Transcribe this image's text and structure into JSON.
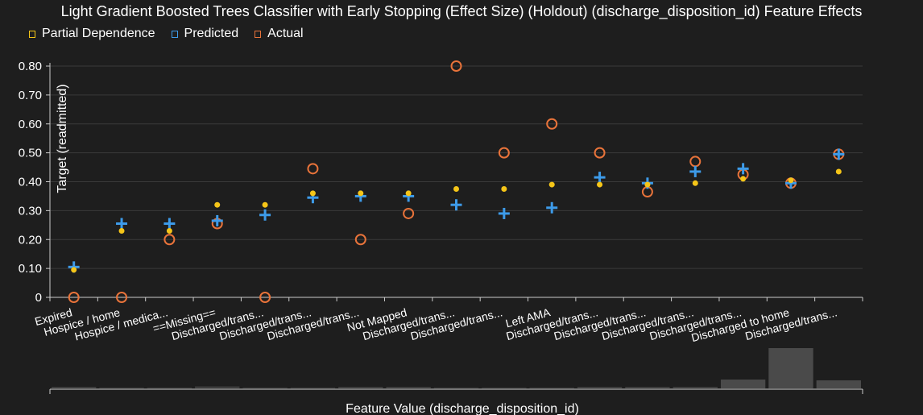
{
  "title": "Light Gradient Boosted Trees Classifier with Early Stopping (Effect Size) (Holdout) (discharge_disposition_id) Feature Effects",
  "legend": [
    {
      "label": "Partial Dependence",
      "color": "#f5c518"
    },
    {
      "label": "Predicted",
      "color": "#3d9be9"
    },
    {
      "label": "Actual",
      "color": "#e8733a"
    }
  ],
  "chart_data": {
    "type": "scatter",
    "title": "Light Gradient Boosted Trees Classifier with Early Stopping (Effect Size) (Holdout) (discharge_disposition_id) Feature Effects",
    "xlabel": "Feature Value (discharge_disposition_id)",
    "ylabel": "Target (readmitted)",
    "ylim": [
      0,
      0.8
    ],
    "yticks": [
      "0",
      "0.10",
      "0.20",
      "0.30",
      "0.40",
      "0.50",
      "0.60",
      "0.70",
      "0.80"
    ],
    "grid": true,
    "legend_position": "top-left",
    "categories": [
      "Expired",
      "Hospice / home",
      "Hospice / medica...",
      "==Missing==",
      "Discharged/trans...",
      "Discharged/trans...",
      "Discharged/trans...",
      "Not Mapped",
      "Discharged/trans...",
      "Discharged/trans...",
      "Left AMA",
      "Discharged/trans...",
      "Discharged/trans...",
      "Discharged/trans...",
      "Discharged/trans...",
      "Discharged to home",
      "Discharged/trans..."
    ],
    "series": [
      {
        "name": "Partial Dependence",
        "color": "#f5c518",
        "values": [
          0.095,
          0.23,
          0.23,
          0.32,
          0.32,
          0.36,
          0.36,
          0.36,
          0.375,
          0.375,
          0.39,
          0.39,
          0.39,
          0.395,
          0.41,
          0.405,
          0.435
        ]
      },
      {
        "name": "Predicted",
        "color": "#3d9be9",
        "values": [
          0.105,
          0.255,
          0.255,
          0.265,
          0.285,
          0.345,
          0.35,
          0.35,
          0.32,
          0.29,
          0.31,
          0.415,
          0.395,
          0.435,
          0.445,
          0.395,
          0.495
        ]
      },
      {
        "name": "Actual",
        "color": "#e8733a",
        "values": [
          0.0,
          0.0,
          0.2,
          0.255,
          0.0,
          0.445,
          0.2,
          0.29,
          0.8,
          0.5,
          0.6,
          0.5,
          0.365,
          0.47,
          0.425,
          0.395,
          0.495
        ]
      }
    ],
    "histogram": [
      0.03,
      0,
      0,
      0.05,
      0,
      0,
      0.02,
      0.02,
      0,
      0,
      0,
      0.02,
      0.02,
      0.02,
      0.22,
      1.0,
      0.2
    ]
  }
}
